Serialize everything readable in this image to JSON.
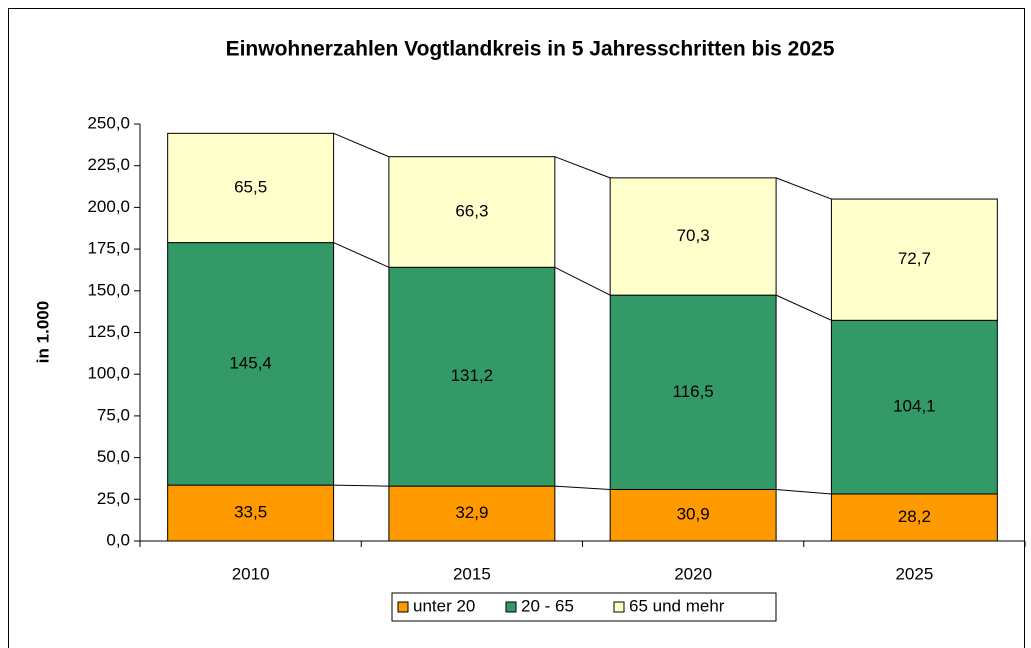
{
  "chart_data": {
    "type": "stacked_bar",
    "title": "Einwohnerzahlen Vogtlandkreis in 5 Jahresschritten bis 2025",
    "y_axis_label": "in 1.000",
    "categories": [
      "2010",
      "2015",
      "2020",
      "2025"
    ],
    "series": [
      {
        "name": "unter 20",
        "color": "#FF9900",
        "values": [
          33.5,
          32.9,
          30.9,
          28.2
        ],
        "value_labels": [
          "33,5",
          "32,9",
          "30,9",
          "28,2"
        ]
      },
      {
        "name": "20 - 65",
        "color": "#339966",
        "values": [
          145.4,
          131.2,
          116.5,
          104.1
        ],
        "value_labels": [
          "145,4",
          "131,2",
          "116,5",
          "104,1"
        ]
      },
      {
        "name": "65 und mehr",
        "color": "#FFFFCC",
        "values": [
          65.5,
          66.3,
          70.3,
          72.7
        ],
        "value_labels": [
          "65,5",
          "66,3",
          "70,3",
          "72,7"
        ]
      }
    ],
    "ylim": [
      0,
      250
    ],
    "yticks": [
      {
        "value": 0,
        "label": "0,0"
      },
      {
        "value": 25,
        "label": "25,0"
      },
      {
        "value": 50,
        "label": "50,0"
      },
      {
        "value": 75,
        "label": "75,0"
      },
      {
        "value": 100,
        "label": "100,0"
      },
      {
        "value": 125,
        "label": "125,0"
      },
      {
        "value": 150,
        "label": "150,0"
      },
      {
        "value": 175,
        "label": "175,0"
      },
      {
        "value": 200,
        "label": "200,0"
      },
      {
        "value": 225,
        "label": "225,0"
      },
      {
        "value": 250,
        "label": "250,0"
      }
    ],
    "legend": "bottom"
  }
}
